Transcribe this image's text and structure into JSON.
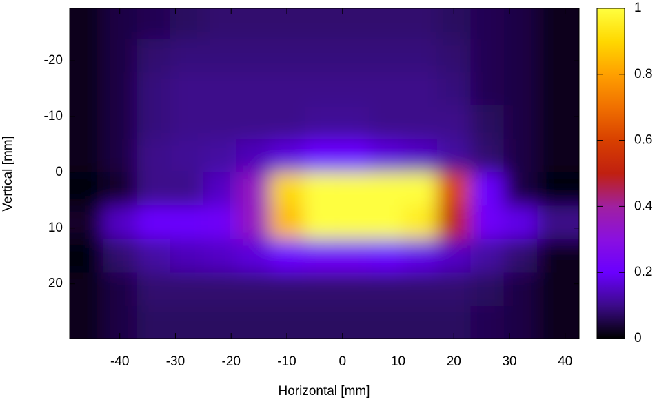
{
  "chart_data": {
    "type": "heatmap",
    "xlabel": "Horizontal [mm]",
    "ylabel": "Vertical [mm]",
    "x": [
      -46,
      -40,
      -34,
      -28,
      -22,
      -16,
      -10,
      -4,
      2,
      8,
      14,
      20,
      26,
      32,
      38
    ],
    "y": [
      -27,
      -21,
      -15,
      -9,
      -3,
      3,
      9,
      15,
      21,
      27
    ],
    "values": [
      [
        0.02,
        0.05,
        0.06,
        0.07,
        0.08,
        0.08,
        0.08,
        0.08,
        0.08,
        0.08,
        0.08,
        0.07,
        0.06,
        0.05,
        0.02
      ],
      [
        0.02,
        0.05,
        0.08,
        0.09,
        0.09,
        0.09,
        0.09,
        0.09,
        0.09,
        0.09,
        0.09,
        0.08,
        0.06,
        0.05,
        0.02
      ],
      [
        0.02,
        0.05,
        0.09,
        0.1,
        0.1,
        0.1,
        0.1,
        0.1,
        0.1,
        0.1,
        0.1,
        0.09,
        0.06,
        0.05,
        0.02
      ],
      [
        0.02,
        0.05,
        0.09,
        0.1,
        0.1,
        0.1,
        0.1,
        0.11,
        0.11,
        0.1,
        0.1,
        0.1,
        0.07,
        0.05,
        0.02
      ],
      [
        0.02,
        0.05,
        0.1,
        0.11,
        0.12,
        0.14,
        0.17,
        0.2,
        0.2,
        0.17,
        0.15,
        0.12,
        0.08,
        0.05,
        0.02
      ],
      [
        0.01,
        0.03,
        0.1,
        0.1,
        0.15,
        0.35,
        0.9,
        1,
        1,
        1,
        1,
        0.6,
        0.2,
        0.05,
        0.01
      ],
      [
        0.03,
        0.15,
        0.2,
        0.2,
        0.22,
        0.35,
        0.85,
        1,
        1,
        1,
        0.95,
        0.5,
        0.22,
        0.18,
        0.1
      ],
      [
        0.01,
        0.08,
        0.12,
        0.14,
        0.15,
        0.17,
        0.2,
        0.22,
        0.22,
        0.2,
        0.18,
        0.15,
        0.12,
        0.08,
        0.02
      ],
      [
        0.02,
        0.05,
        0.08,
        0.08,
        0.08,
        0.08,
        0.08,
        0.08,
        0.08,
        0.08,
        0.08,
        0.08,
        0.07,
        0.05,
        0.02
      ],
      [
        0.02,
        0.05,
        0.07,
        0.07,
        0.07,
        0.07,
        0.07,
        0.07,
        0.07,
        0.07,
        0.07,
        0.07,
        0.06,
        0.05,
        0.02
      ]
    ],
    "xlim": [
      -49,
      42.5
    ],
    "ylim": [
      -29.4,
      29.8
    ],
    "y_reversed": true,
    "xticks": [
      -40,
      -30,
      -20,
      -10,
      0,
      10,
      20,
      30,
      40
    ],
    "yticks": [
      -20,
      -10,
      0,
      10,
      20
    ],
    "clim": [
      0,
      1
    ],
    "cticks": [
      0,
      0.2,
      0.4,
      0.6,
      0.8,
      1
    ],
    "colormap": [
      "#000000",
      "#3c0a8a",
      "#6a00ff",
      "#8a10e0",
      "#a020a0",
      "#c02010",
      "#d84000",
      "#f07000",
      "#ffa000",
      "#ffd800",
      "#ffff40"
    ]
  }
}
